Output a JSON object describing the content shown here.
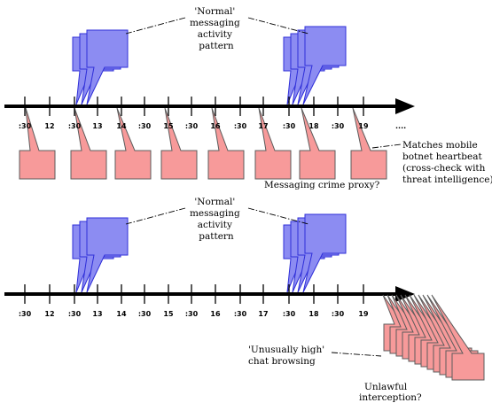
{
  "tick_labels": [
    ":30",
    "12",
    ":30",
    "13",
    "14",
    ":30",
    "15",
    ":30",
    "16",
    ":30",
    "17",
    ":30",
    "18",
    ":30",
    "19"
  ],
  "top_panel": {
    "end_label": "....",
    "normal_label": [
      "'Normal'",
      "messaging",
      "activity",
      "pattern"
    ],
    "heartbeat_label": [
      "Matches mobile",
      "botnet heartbeat",
      "(cross-check with",
      "threat intelligence)"
    ],
    "crime_label": "Messaging crime proxy?"
  },
  "bottom_panel": {
    "normal_label": [
      "'Normal'",
      "messaging",
      "activity",
      "pattern"
    ],
    "chat_label": [
      "'Unusually high'",
      "chat browsing"
    ],
    "interception_label": [
      "Unlawful",
      "interception?"
    ]
  },
  "colors": {
    "outgoing_bubble": "#8c8cf2",
    "incoming_bubble": "#f79a9a",
    "axis": "#000000"
  },
  "icons": [
    "speech-bubble-outgoing",
    "speech-bubble-incoming",
    "arrow-right"
  ]
}
